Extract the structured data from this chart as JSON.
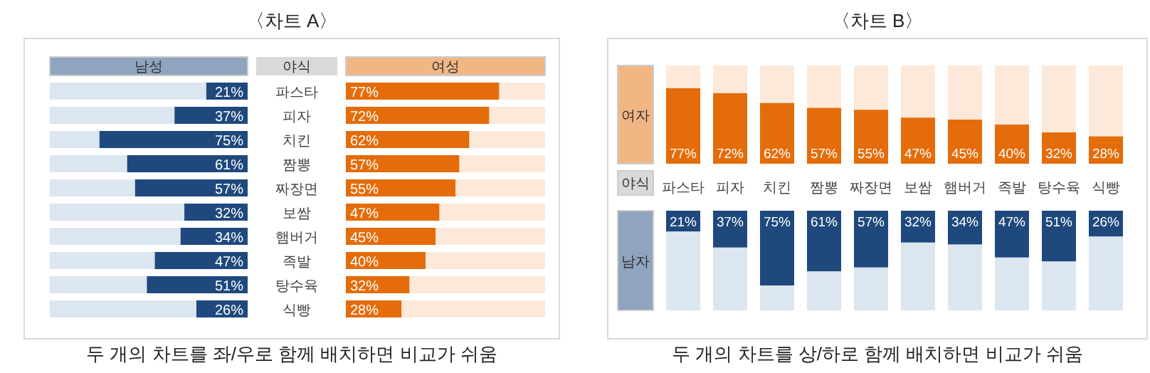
{
  "chart_data": [
    {
      "type": "bar",
      "orientation": "horizontal",
      "stacked": true,
      "title": "〈차트 A〉",
      "ylabel": "야식",
      "categories": [
        "파스타",
        "피자",
        "치킨",
        "짬뽕",
        "짜장면",
        "보쌈",
        "햄버거",
        "족발",
        "탕수육",
        "식빵"
      ],
      "series": [
        {
          "name": "남성",
          "color": "#1f497d",
          "values": [
            0.21,
            0.37,
            0.75,
            0.61,
            0.57,
            0.32,
            0.34,
            0.47,
            0.51,
            0.26
          ],
          "value_labels": [
            "21%",
            "37%",
            "75%",
            "61%",
            "57%",
            "32%",
            "34%",
            "47%",
            "51%",
            "26%"
          ]
        },
        {
          "color": "#dce6f1",
          "values": [
            0.79,
            0.63,
            0.25,
            0.39,
            0.43,
            0.68,
            0.66,
            0.53,
            0.49,
            0.74
          ]
        }
      ],
      "annotations": [
        "두 개의 차트를 좌/우로 함께 배치하면 비교가 쉬움"
      ]
    },
    {
      "type": "bar",
      "orientation": "horizontal",
      "stacked": true,
      "categories": [
        null,
        null,
        null,
        null,
        null,
        null,
        null,
        null,
        null,
        null
      ],
      "series": [
        {
          "name": "여성",
          "color": "#e46c0a",
          "values": [
            0.77,
            0.72,
            0.62,
            0.57,
            0.55,
            0.47,
            0.45,
            0.4,
            0.32,
            0.28
          ],
          "value_labels": [
            "77%",
            "72%",
            "62%",
            "57%",
            "55%",
            "47%",
            "45%",
            "40%",
            "32%",
            "28%"
          ]
        },
        {
          "color": "#fde9d9",
          "values": [
            0.23,
            0.28,
            0.38,
            0.43,
            0.45,
            0.53,
            0.55,
            0.6,
            0.68,
            0.72
          ]
        }
      ]
    },
    {
      "type": "bar",
      "stacked": true,
      "title": "〈차트 B〉",
      "xlabel": "야식",
      "categories": [
        "파스타",
        "피자",
        "치킨",
        "짬뽕",
        "짜장면",
        "보쌈",
        "햄버거",
        "족발",
        "탕수육",
        "식빵"
      ],
      "series": [
        {
          "name": "여자",
          "color": "#e46c0a",
          "values": [
            0.77,
            0.72,
            0.62,
            0.57,
            0.55,
            0.47,
            0.45,
            0.4,
            0.32,
            0.28
          ],
          "value_labels": [
            "77%",
            "72%",
            "62%",
            "57%",
            "55%",
            "47%",
            "45%",
            "40%",
            "32%",
            "28%"
          ]
        },
        {
          "color": "#fde9d9",
          "values": [
            0.23,
            0.28,
            0.38,
            0.43,
            0.45,
            0.53,
            0.55,
            0.6,
            0.68,
            0.72
          ]
        }
      ],
      "annotations": [
        "두 개의 차트를 상/하로 함께 배치하면 비교가 쉬움"
      ]
    },
    {
      "type": "bar",
      "stacked": true,
      "categories": [
        null,
        null,
        null,
        null,
        null,
        null,
        null,
        null,
        null,
        null
      ],
      "series": [
        {
          "name": "남자",
          "color": "#1f497d",
          "values": [
            0.21,
            0.37,
            0.75,
            0.61,
            0.57,
            0.32,
            0.34,
            0.47,
            0.51,
            0.26
          ],
          "value_labels": [
            "21%",
            "37%",
            "75%",
            "61%",
            "57%",
            "32%",
            "34%",
            "47%",
            "51%",
            "26%"
          ]
        },
        {
          "color": "#dce6f1",
          "values": [
            0.79,
            0.63,
            0.25,
            0.39,
            0.43,
            0.68,
            0.66,
            0.53,
            0.49,
            0.74
          ]
        }
      ]
    }
  ]
}
